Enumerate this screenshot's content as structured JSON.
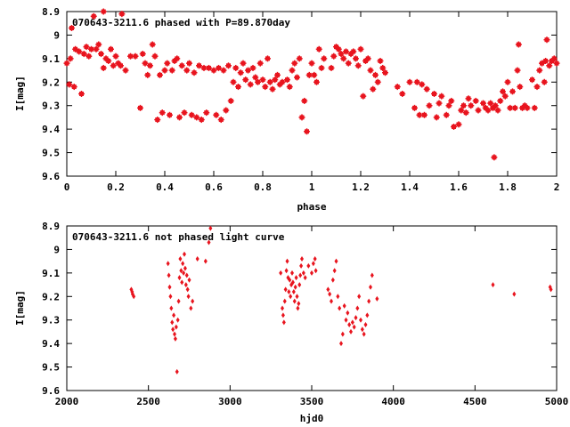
{
  "chart_data": [
    {
      "type": "scatter",
      "title": "070643-3211.6 phased with P=89.870day",
      "xlabel": "phase",
      "ylabel": "I[mag]",
      "xlim": [
        0,
        2
      ],
      "ylim": [
        9.6,
        8.9
      ],
      "y_inverted": true,
      "grid": false,
      "marker_color": "#e8141e",
      "x_ticks": [
        "0",
        "0.2",
        "0.4",
        "0.6",
        "0.8",
        "1",
        "1.2",
        "1.4",
        "1.6",
        "1.8",
        "2"
      ],
      "y_ticks": [
        "8.9",
        "9",
        "9.1",
        "9.2",
        "9.3",
        "9.4",
        "9.5",
        "9.6"
      ],
      "points": [
        [
          0.0,
          9.12
        ],
        [
          0.01,
          9.21
        ],
        [
          0.015,
          9.1
        ],
        [
          0.02,
          8.97
        ],
        [
          0.03,
          9.22
        ],
        [
          0.035,
          9.06
        ],
        [
          0.05,
          9.07
        ],
        [
          0.06,
          9.25
        ],
        [
          0.07,
          9.08
        ],
        [
          0.08,
          9.05
        ],
        [
          0.09,
          9.09
        ],
        [
          0.1,
          9.06
        ],
        [
          0.11,
          8.92
        ],
        [
          0.12,
          9.06
        ],
        [
          0.13,
          9.04
        ],
        [
          0.14,
          9.08
        ],
        [
          0.15,
          8.9
        ],
        [
          0.15,
          9.14
        ],
        [
          0.16,
          9.1
        ],
        [
          0.17,
          9.11
        ],
        [
          0.18,
          9.06
        ],
        [
          0.19,
          9.13
        ],
        [
          0.2,
          9.09
        ],
        [
          0.21,
          9.12
        ],
        [
          0.22,
          9.13
        ],
        [
          0.225,
          8.91
        ],
        [
          0.24,
          9.15
        ],
        [
          0.26,
          9.09
        ],
        [
          0.28,
          9.09
        ],
        [
          0.3,
          9.31
        ],
        [
          0.31,
          9.08
        ],
        [
          0.32,
          9.12
        ],
        [
          0.33,
          9.17
        ],
        [
          0.34,
          9.13
        ],
        [
          0.35,
          9.04
        ],
        [
          0.36,
          9.09
        ],
        [
          0.37,
          9.36
        ],
        [
          0.38,
          9.17
        ],
        [
          0.39,
          9.33
        ],
        [
          0.4,
          9.15
        ],
        [
          0.41,
          9.12
        ],
        [
          0.42,
          9.34
        ],
        [
          0.43,
          9.15
        ],
        [
          0.44,
          9.11
        ],
        [
          0.45,
          9.1
        ],
        [
          0.46,
          9.35
        ],
        [
          0.47,
          9.13
        ],
        [
          0.48,
          9.33
        ],
        [
          0.49,
          9.15
        ],
        [
          0.5,
          9.12
        ],
        [
          0.51,
          9.34
        ],
        [
          0.52,
          9.16
        ],
        [
          0.53,
          9.35
        ],
        [
          0.54,
          9.13
        ],
        [
          0.55,
          9.36
        ],
        [
          0.56,
          9.14
        ],
        [
          0.57,
          9.33
        ],
        [
          0.58,
          9.14
        ],
        [
          0.6,
          9.15
        ],
        [
          0.61,
          9.34
        ],
        [
          0.62,
          9.14
        ],
        [
          0.63,
          9.36
        ],
        [
          0.64,
          9.15
        ],
        [
          0.65,
          9.32
        ],
        [
          0.66,
          9.13
        ],
        [
          0.67,
          9.28
        ],
        [
          0.68,
          9.2
        ],
        [
          0.69,
          9.14
        ],
        [
          0.7,
          9.22
        ],
        [
          0.71,
          9.16
        ],
        [
          0.72,
          9.12
        ],
        [
          0.73,
          9.19
        ],
        [
          0.74,
          9.15
        ],
        [
          0.75,
          9.21
        ],
        [
          0.76,
          9.14
        ],
        [
          0.77,
          9.18
        ],
        [
          0.78,
          9.2
        ],
        [
          0.79,
          9.12
        ],
        [
          0.8,
          9.19
        ],
        [
          0.81,
          9.22
        ],
        [
          0.82,
          9.1
        ],
        [
          0.83,
          9.2
        ],
        [
          0.84,
          9.23
        ],
        [
          0.85,
          9.19
        ],
        [
          0.86,
          9.17
        ],
        [
          0.87,
          9.21
        ],
        [
          0.88,
          9.2
        ],
        [
          0.9,
          9.19
        ],
        [
          0.91,
          9.22
        ],
        [
          0.92,
          9.15
        ],
        [
          0.93,
          9.12
        ],
        [
          0.94,
          9.18
        ],
        [
          0.95,
          9.1
        ],
        [
          0.96,
          9.35
        ],
        [
          0.97,
          9.28
        ],
        [
          0.98,
          9.41
        ],
        [
          0.99,
          9.17
        ],
        [
          1.0,
          9.12
        ],
        [
          1.01,
          9.17
        ],
        [
          1.02,
          9.2
        ],
        [
          1.03,
          9.06
        ],
        [
          1.04,
          9.14
        ],
        [
          1.05,
          9.1
        ],
        [
          1.08,
          9.14
        ],
        [
          1.09,
          9.09
        ],
        [
          1.1,
          9.05
        ],
        [
          1.11,
          9.06
        ],
        [
          1.12,
          9.08
        ],
        [
          1.13,
          9.1
        ],
        [
          1.14,
          9.07
        ],
        [
          1.15,
          9.12
        ],
        [
          1.16,
          9.08
        ],
        [
          1.17,
          9.07
        ],
        [
          1.18,
          9.1
        ],
        [
          1.19,
          9.13
        ],
        [
          1.2,
          9.06
        ],
        [
          1.21,
          9.26
        ],
        [
          1.22,
          9.11
        ],
        [
          1.23,
          9.1
        ],
        [
          1.24,
          9.15
        ],
        [
          1.25,
          9.23
        ],
        [
          1.26,
          9.17
        ],
        [
          1.27,
          9.2
        ],
        [
          1.28,
          9.11
        ],
        [
          1.29,
          9.14
        ],
        [
          1.3,
          9.16
        ],
        [
          1.35,
          9.22
        ],
        [
          1.37,
          9.25
        ],
        [
          1.4,
          9.2
        ],
        [
          1.42,
          9.31
        ],
        [
          1.43,
          9.2
        ],
        [
          1.44,
          9.34
        ],
        [
          1.45,
          9.21
        ],
        [
          1.46,
          9.34
        ],
        [
          1.47,
          9.23
        ],
        [
          1.48,
          9.3
        ],
        [
          1.5,
          9.25
        ],
        [
          1.51,
          9.35
        ],
        [
          1.52,
          9.29
        ],
        [
          1.53,
          9.26
        ],
        [
          1.55,
          9.34
        ],
        [
          1.56,
          9.3
        ],
        [
          1.57,
          9.28
        ],
        [
          1.58,
          9.39
        ],
        [
          1.6,
          9.38
        ],
        [
          1.61,
          9.32
        ],
        [
          1.62,
          9.3
        ],
        [
          1.63,
          9.33
        ],
        [
          1.64,
          9.27
        ],
        [
          1.65,
          9.3
        ],
        [
          1.67,
          9.28
        ],
        [
          1.68,
          9.32
        ],
        [
          1.7,
          9.29
        ],
        [
          1.71,
          9.31
        ],
        [
          1.72,
          9.32
        ],
        [
          1.73,
          9.29
        ],
        [
          1.74,
          9.31
        ],
        [
          1.745,
          9.52
        ],
        [
          1.75,
          9.3
        ],
        [
          1.76,
          9.32
        ],
        [
          1.77,
          9.28
        ],
        [
          1.78,
          9.24
        ],
        [
          1.79,
          9.26
        ],
        [
          1.8,
          9.2
        ],
        [
          1.81,
          9.31
        ],
        [
          1.82,
          9.24
        ],
        [
          1.83,
          9.31
        ],
        [
          1.84,
          9.15
        ],
        [
          1.845,
          9.04
        ],
        [
          1.85,
          9.22
        ],
        [
          1.86,
          9.31
        ],
        [
          1.87,
          9.3
        ],
        [
          1.88,
          9.31
        ],
        [
          1.9,
          9.19
        ],
        [
          1.91,
          9.31
        ],
        [
          1.92,
          9.22
        ],
        [
          1.93,
          9.15
        ],
        [
          1.94,
          9.12
        ],
        [
          1.95,
          9.2
        ],
        [
          1.955,
          9.11
        ],
        [
          1.96,
          9.02
        ],
        [
          1.97,
          9.13
        ],
        [
          1.98,
          9.11
        ],
        [
          1.99,
          9.1
        ],
        [
          2.0,
          9.12
        ]
      ]
    },
    {
      "type": "scatter",
      "title": "070643-3211.6 not phased light curve",
      "xlabel": "hjd0",
      "ylabel": "I[mag]",
      "xlim": [
        2000,
        5000
      ],
      "ylim": [
        9.6,
        8.9
      ],
      "y_inverted": true,
      "grid": false,
      "marker_color": "#e8141e",
      "x_ticks": [
        "2000",
        "2500",
        "3000",
        "3500",
        "4000",
        "4500",
        "5000"
      ],
      "y_ticks": [
        "8.9",
        "9",
        "9.1",
        "9.2",
        "9.3",
        "9.4",
        "9.5",
        "9.6"
      ],
      "points": [
        [
          2395,
          9.17
        ],
        [
          2400,
          9.18
        ],
        [
          2403,
          9.19
        ],
        [
          2410,
          9.2
        ],
        [
          2620,
          9.06
        ],
        [
          2625,
          9.11
        ],
        [
          2630,
          9.16
        ],
        [
          2635,
          9.2
        ],
        [
          2640,
          9.25
        ],
        [
          2645,
          9.31
        ],
        [
          2650,
          9.34
        ],
        [
          2655,
          9.28
        ],
        [
          2660,
          9.36
        ],
        [
          2665,
          9.38
        ],
        [
          2670,
          9.33
        ],
        [
          2675,
          9.52
        ],
        [
          2680,
          9.3
        ],
        [
          2685,
          9.22
        ],
        [
          2690,
          9.12
        ],
        [
          2695,
          9.04
        ],
        [
          2700,
          9.09
        ],
        [
          2705,
          9.14
        ],
        [
          2710,
          9.06
        ],
        [
          2715,
          9.1
        ],
        [
          2720,
          9.02
        ],
        [
          2725,
          9.08
        ],
        [
          2730,
          9.15
        ],
        [
          2735,
          9.11
        ],
        [
          2740,
          9.17
        ],
        [
          2745,
          9.2
        ],
        [
          2750,
          9.13
        ],
        [
          2760,
          9.25
        ],
        [
          2770,
          9.22
        ],
        [
          2800,
          9.04
        ],
        [
          2850,
          9.05
        ],
        [
          2870,
          8.97
        ],
        [
          2880,
          8.91
        ],
        [
          3310,
          9.1
        ],
        [
          3320,
          9.25
        ],
        [
          3325,
          9.28
        ],
        [
          3330,
          9.31
        ],
        [
          3335,
          9.22
        ],
        [
          3340,
          9.17
        ],
        [
          3345,
          9.09
        ],
        [
          3350,
          9.05
        ],
        [
          3355,
          9.12
        ],
        [
          3360,
          9.18
        ],
        [
          3365,
          9.13
        ],
        [
          3370,
          9.2
        ],
        [
          3375,
          9.15
        ],
        [
          3380,
          9.1
        ],
        [
          3385,
          9.14
        ],
        [
          3390,
          9.18
        ],
        [
          3395,
          9.22
        ],
        [
          3400,
          9.16
        ],
        [
          3405,
          9.12
        ],
        [
          3410,
          9.2
        ],
        [
          3415,
          9.25
        ],
        [
          3420,
          9.23
        ],
        [
          3425,
          9.15
        ],
        [
          3430,
          9.11
        ],
        [
          3435,
          9.07
        ],
        [
          3440,
          9.04
        ],
        [
          3450,
          9.1
        ],
        [
          3460,
          9.12
        ],
        [
          3480,
          9.07
        ],
        [
          3500,
          9.1
        ],
        [
          3510,
          9.06
        ],
        [
          3520,
          9.04
        ],
        [
          3525,
          9.09
        ],
        [
          3600,
          9.17
        ],
        [
          3610,
          9.19
        ],
        [
          3620,
          9.22
        ],
        [
          3630,
          9.13
        ],
        [
          3640,
          9.09
        ],
        [
          3650,
          9.05
        ],
        [
          3660,
          9.2
        ],
        [
          3670,
          9.25
        ],
        [
          3680,
          9.4
        ],
        [
          3690,
          9.36
        ],
        [
          3700,
          9.24
        ],
        [
          3710,
          9.3
        ],
        [
          3720,
          9.27
        ],
        [
          3730,
          9.32
        ],
        [
          3740,
          9.35
        ],
        [
          3750,
          9.31
        ],
        [
          3760,
          9.33
        ],
        [
          3770,
          9.29
        ],
        [
          3780,
          9.25
        ],
        [
          3790,
          9.2
        ],
        [
          3800,
          9.3
        ],
        [
          3810,
          9.34
        ],
        [
          3820,
          9.36
        ],
        [
          3830,
          9.32
        ],
        [
          3840,
          9.28
        ],
        [
          3850,
          9.22
        ],
        [
          3860,
          9.16
        ],
        [
          3870,
          9.11
        ],
        [
          3900,
          9.21
        ],
        [
          4610,
          9.15
        ],
        [
          4740,
          9.19
        ],
        [
          4960,
          9.16
        ],
        [
          4965,
          9.17
        ]
      ]
    }
  ]
}
